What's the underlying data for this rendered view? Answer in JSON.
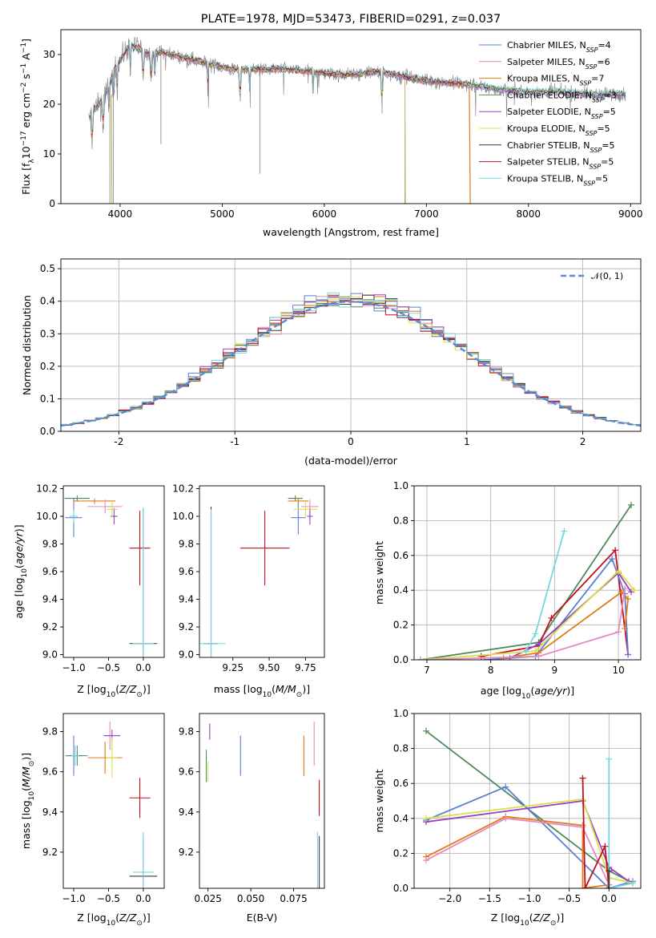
{
  "chart_data": [
    {
      "id": "spectrum",
      "type": "line",
      "title": "PLATE=1978, MJD=53473, FIBERID=0291, z=0.037",
      "xlabel": "wavelength [Angstrom, rest frame]",
      "ylabel": "Flux [f_λ10^{-17} erg cm^{-2} s^{-1} A^{-1}]",
      "xlim": [
        3420,
        9100
      ],
      "ylim": [
        0,
        35
      ],
      "xticks": [
        4000,
        5000,
        6000,
        7000,
        8000,
        9000
      ],
      "yticks": [
        0,
        10,
        20,
        30
      ],
      "grid": false,
      "legend_position": "top-right",
      "continuum": [
        [
          3690,
          17
        ],
        [
          3750,
          19
        ],
        [
          3830,
          21
        ],
        [
          3900,
          24
        ],
        [
          3950,
          27
        ],
        [
          4000,
          29
        ],
        [
          4100,
          32
        ],
        [
          4200,
          31
        ],
        [
          4300,
          30
        ],
        [
          4400,
          30.5
        ],
        [
          4500,
          30
        ],
        [
          4700,
          29
        ],
        [
          4900,
          28
        ],
        [
          5100,
          27
        ],
        [
          5300,
          27
        ],
        [
          5600,
          27
        ],
        [
          5900,
          26.5
        ],
        [
          6100,
          26
        ],
        [
          6300,
          26
        ],
        [
          6500,
          26.5
        ],
        [
          6700,
          26
        ],
        [
          6900,
          25
        ],
        [
          7100,
          24.5
        ],
        [
          7400,
          24
        ],
        [
          7700,
          23
        ],
        [
          8000,
          22.5
        ],
        [
          8300,
          22.5
        ],
        [
          8600,
          22
        ],
        [
          8900,
          22
        ]
      ],
      "series": [
        {
          "name": "Chabrier MILES, N_SSP=4",
          "color": "#5b7fd6"
        },
        {
          "name": "Salpeter MILES, N_SSP=6",
          "color": "#e58ac0"
        },
        {
          "name": "Kroupa MILES, N_SSP=7",
          "color": "#e07b1a"
        },
        {
          "name": "Chabrier ELODIE, N_SSP=3",
          "color": "#4f8a5a"
        },
        {
          "name": "Salpeter ELODIE, N_SSP=5",
          "color": "#9a3fbf"
        },
        {
          "name": "Kroupa ELODIE, N_SSP=5",
          "color": "#d8e04a"
        },
        {
          "name": "Chabrier STELIB, N_SSP=5",
          "color": "#3a3a3a"
        },
        {
          "name": "Salpeter STELIB, N_SSP=5",
          "color": "#c0111f"
        },
        {
          "name": "Kroupa STELIB, N_SSP=5",
          "color": "#74d6e0"
        }
      ]
    },
    {
      "id": "residuals",
      "type": "line",
      "xlabel": "(data-model)/error",
      "ylabel": "Normed distribution",
      "xlim": [
        -2.5,
        2.5
      ],
      "ylim": [
        0,
        0.53
      ],
      "xticks": [
        -2,
        -1,
        0,
        1,
        2
      ],
      "yticks": [
        0.0,
        0.1,
        0.2,
        0.3,
        0.4,
        0.5
      ],
      "grid": true,
      "legend_position": "top-right",
      "legend": "𝒩(0, 1)",
      "reference_curve": {
        "name": "𝒩(0, 1)",
        "color": "#5b8bd6",
        "mean": 0,
        "sigma": 1
      },
      "bin_width": 0.1
    },
    {
      "id": "age_vs_Z",
      "type": "scatter",
      "xlabel": "Z [log10(Z/Z⊙)]",
      "ylabel": "age [log10(age/yr)]",
      "xlim": [
        -1.15,
        0.3
      ],
      "ylim": [
        8.98,
        10.22
      ],
      "xticks": [
        -1.0,
        -0.5,
        0.0
      ],
      "yticks": [
        9.0,
        9.2,
        9.4,
        9.6,
        9.8,
        10.0,
        10.2
      ],
      "points": [
        {
          "color": "#5b7fd6",
          "x": -1.0,
          "y": 9.99,
          "xerr": 0.12,
          "yerr": 0.14
        },
        {
          "color": "#4f8a5a",
          "x": -0.95,
          "y": 10.13,
          "xerr": 0.18,
          "yerr": 0.02
        },
        {
          "color": "#74d6e0",
          "x": -1.0,
          "y": 10.0,
          "xerr": 0.06,
          "yerr": 0.05
        },
        {
          "color": "#e07b1a",
          "x": -0.7,
          "y": 10.11,
          "xerr": 0.3,
          "yerr": 0.02
        },
        {
          "color": "#e58ac0",
          "x": -0.55,
          "y": 10.07,
          "xerr": 0.25,
          "yerr": 0.05
        },
        {
          "color": "#9a3fbf",
          "x": -0.42,
          "y": 10.0,
          "xerr": 0.05,
          "yerr": 0.06
        },
        {
          "color": "#d8e04a",
          "x": -0.45,
          "y": 10.05,
          "xerr": 0.08,
          "yerr": 0.06
        },
        {
          "color": "#c0111f",
          "x": -0.05,
          "y": 9.77,
          "xerr": 0.15,
          "yerr": 0.27
        },
        {
          "color": "#3a3a3a",
          "x": 0.0,
          "y": 9.08,
          "xerr": 0.2,
          "yerr": 0.98
        },
        {
          "color": "#74d6e0",
          "x": 0.0,
          "y": 9.08,
          "xerr": 0.15,
          "yerr": 0.98
        }
      ]
    },
    {
      "id": "age_vs_mass",
      "type": "scatter",
      "xlabel": "mass [log10(M/M⊙)]",
      "ylabel": "",
      "xlim": [
        9.02,
        9.88
      ],
      "ylim": [
        8.98,
        10.22
      ],
      "xticks": [
        9.25,
        9.5,
        9.75
      ],
      "yticks": [
        9.0,
        9.2,
        9.4,
        9.6,
        9.8,
        10.0,
        10.2
      ],
      "points": [
        {
          "color": "#5b7fd6",
          "x": 9.7,
          "y": 9.99,
          "xerr": 0.05,
          "yerr": 0.12
        },
        {
          "color": "#4f8a5a",
          "x": 9.68,
          "y": 10.13,
          "xerr": 0.05,
          "yerr": 0.02
        },
        {
          "color": "#e07b1a",
          "x": 9.7,
          "y": 10.11,
          "xerr": 0.07,
          "yerr": 0.02
        },
        {
          "color": "#e58ac0",
          "x": 9.78,
          "y": 10.07,
          "xerr": 0.06,
          "yerr": 0.05
        },
        {
          "color": "#9a3fbf",
          "x": 9.78,
          "y": 10.0,
          "xerr": 0.02,
          "yerr": 0.06
        },
        {
          "color": "#d8e04a",
          "x": 9.75,
          "y": 10.05,
          "xerr": 0.08,
          "yerr": 0.06
        },
        {
          "color": "#c0111f",
          "x": 9.47,
          "y": 9.77,
          "xerr": 0.17,
          "yerr": 0.27
        },
        {
          "color": "#3a3a3a",
          "x": 9.1,
          "y": 9.08,
          "xerr": 0.05,
          "yerr": 0.99
        },
        {
          "color": "#74d6e0",
          "x": 9.1,
          "y": 9.08,
          "xerr": 0.1,
          "yerr": 0.97
        }
      ]
    },
    {
      "id": "weight_vs_age",
      "type": "line",
      "xlabel": "age [log10(age/yr)]",
      "ylabel": "mass weight",
      "xlim": [
        6.8,
        10.35
      ],
      "ylim": [
        0,
        1.0
      ],
      "xticks": [
        7,
        8,
        9,
        10
      ],
      "yticks": [
        0.0,
        0.2,
        0.4,
        0.6,
        0.8,
        1.0
      ],
      "grid": true,
      "series": [
        {
          "color": "#4f8a5a",
          "x": [
            6.9,
            8.75,
            10.2
          ],
          "y": [
            0.0,
            0.1,
            0.89
          ]
        },
        {
          "color": "#c0111f",
          "x": [
            7.85,
            8.75,
            8.95,
            9.95,
            10.15
          ],
          "y": [
            0.02,
            0.08,
            0.24,
            0.63,
            0.03
          ]
        },
        {
          "color": "#5b7fd6",
          "x": [
            7.9,
            8.7,
            9.9,
            10.1,
            10.15
          ],
          "y": [
            0.0,
            0.02,
            0.58,
            0.38,
            0.03
          ]
        },
        {
          "color": "#9a3fbf",
          "x": [
            8.3,
            8.75,
            10.0,
            10.2
          ],
          "y": [
            0.01,
            0.09,
            0.5,
            0.39
          ]
        },
        {
          "color": "#d8e04a",
          "x": [
            6.9,
            8.7,
            10.0,
            10.25
          ],
          "y": [
            0.0,
            0.05,
            0.51,
            0.4
          ]
        },
        {
          "color": "#e07b1a",
          "x": [
            8.2,
            8.75,
            10.05,
            10.15,
            10.1
          ],
          "y": [
            0.01,
            0.04,
            0.39,
            0.35,
            0.18
          ]
        },
        {
          "color": "#e58ac0",
          "x": [
            6.9,
            8.75,
            10.0,
            10.1
          ],
          "y": [
            0.0,
            0.02,
            0.16,
            0.41
          ]
        },
        {
          "color": "#74d6e0",
          "x": [
            8.55,
            8.7,
            9.15
          ],
          "y": [
            0.05,
            0.15,
            0.74
          ]
        }
      ]
    },
    {
      "id": "mass_vs_Z",
      "type": "scatter",
      "xlabel": "Z [log10(Z/Z⊙)]",
      "ylabel": "mass [log10(M/M⊙)]",
      "xlim": [
        -1.15,
        0.3
      ],
      "ylim": [
        9.02,
        9.89
      ],
      "xticks": [
        -1.0,
        -0.5,
        0.0
      ],
      "yticks": [
        9.2,
        9.4,
        9.6,
        9.8
      ],
      "points": [
        {
          "color": "#5b7fd6",
          "x": -1.0,
          "y": 9.68,
          "xerr": 0.12,
          "yerr": 0.1
        },
        {
          "color": "#4f8a5a",
          "x": -0.95,
          "y": 9.68,
          "xerr": 0.15,
          "yerr": 0.05
        },
        {
          "color": "#74d6e0",
          "x": -0.98,
          "y": 9.68,
          "xerr": 0.05,
          "yerr": 0.05
        },
        {
          "color": "#e07b1a",
          "x": -0.55,
          "y": 9.67,
          "xerr": 0.25,
          "yerr": 0.08
        },
        {
          "color": "#e58ac0",
          "x": -0.48,
          "y": 9.78,
          "xerr": 0.05,
          "yerr": 0.07
        },
        {
          "color": "#9a3fbf",
          "x": -0.45,
          "y": 9.78,
          "xerr": 0.12,
          "yerr": 0.03
        },
        {
          "color": "#d8e04a",
          "x": -0.45,
          "y": 9.67,
          "xerr": 0.08,
          "yerr": 0.1
        },
        {
          "color": "#c0111f",
          "x": -0.05,
          "y": 9.47,
          "xerr": 0.15,
          "yerr": 0.1
        },
        {
          "color": "#3a3a3a",
          "x": 0.0,
          "y": 9.08,
          "xerr": 0.2,
          "yerr": 0.2
        },
        {
          "color": "#74d6e0",
          "x": 0.0,
          "y": 9.1,
          "xerr": 0.15,
          "yerr": 0.2
        }
      ]
    },
    {
      "id": "mass_vs_ebv",
      "type": "scatter",
      "xlabel": "E(B-V)",
      "ylabel": "",
      "xlim": [
        0.02,
        0.093
      ],
      "ylim": [
        9.02,
        9.89
      ],
      "xticks": [
        0.025,
        0.05,
        0.075
      ],
      "yticks": [
        9.2,
        9.4,
        9.6,
        9.8
      ],
      "points": [
        {
          "color": "#4f8a5a",
          "x": 0.024,
          "y": 9.63,
          "xerr": 0,
          "yerr": 0.08
        },
        {
          "color": "#d8e04a",
          "x": 0.025,
          "y": 9.6,
          "xerr": 0,
          "yerr": 0.05
        },
        {
          "color": "#9a3fbf",
          "x": 0.026,
          "y": 9.8,
          "xerr": 0,
          "yerr": 0.04
        },
        {
          "color": "#5b7fd6",
          "x": 0.044,
          "y": 9.68,
          "xerr": 0,
          "yerr": 0.1
        },
        {
          "color": "#e07b1a",
          "x": 0.081,
          "y": 9.68,
          "xerr": 0,
          "yerr": 0.1
        },
        {
          "color": "#e58ac0",
          "x": 0.087,
          "y": 9.74,
          "xerr": 0,
          "yerr": 0.11
        },
        {
          "color": "#c0111f",
          "x": 0.09,
          "y": 9.47,
          "xerr": 0,
          "yerr": 0.09
        },
        {
          "color": "#3a3a3a",
          "x": 0.09,
          "y": 9.08,
          "xerr": 0,
          "yerr": 0.2
        },
        {
          "color": "#74d6e0",
          "x": 0.089,
          "y": 9.1,
          "xerr": 0,
          "yerr": 0.2
        }
      ]
    },
    {
      "id": "weight_vs_Z",
      "type": "line",
      "xlabel": "Z [log10(Z/Z⊙)]",
      "ylabel": "mass weight",
      "xlim": [
        -2.45,
        0.4
      ],
      "ylim": [
        0,
        1.0
      ],
      "xticks": [
        -2.0,
        -1.5,
        -1.0,
        -0.5,
        0.0
      ],
      "yticks": [
        0.0,
        0.2,
        0.4,
        0.6,
        0.8,
        1.0
      ],
      "grid": true,
      "series": [
        {
          "color": "#4f8a5a",
          "x": [
            -2.3,
            0.0,
            0.3
          ],
          "y": [
            0.9,
            0.1,
            0.03
          ]
        },
        {
          "color": "#5b7fd6",
          "x": [
            -2.3,
            -1.3,
            0.0,
            0.3
          ],
          "y": [
            0.39,
            0.58,
            0.0,
            0.04
          ]
        },
        {
          "color": "#9a3fbf",
          "x": [
            -2.3,
            -0.33,
            0.0,
            0.25
          ],
          "y": [
            0.38,
            0.5,
            0.12,
            0.04
          ]
        },
        {
          "color": "#d8e04a",
          "x": [
            -2.3,
            -0.33,
            0.0,
            0.3
          ],
          "y": [
            0.4,
            0.51,
            0.06,
            0.03
          ]
        },
        {
          "color": "#e07b1a",
          "x": [
            -2.3,
            -1.3,
            -0.33,
            -0.33,
            0.0
          ],
          "y": [
            0.18,
            0.41,
            0.36,
            0.0,
            0.02
          ]
        },
        {
          "color": "#e58ac0",
          "x": [
            -2.3,
            -1.3,
            -0.33,
            0.0
          ],
          "y": [
            0.16,
            0.4,
            0.35,
            0.02
          ]
        },
        {
          "color": "#c0111f",
          "x": [
            -0.33,
            -0.3,
            -0.05,
            0.0
          ],
          "y": [
            0.63,
            0.0,
            0.24,
            0.0
          ]
        },
        {
          "color": "#74d6e0",
          "x": [
            0.0,
            0.0,
            0.3
          ],
          "y": [
            0.74,
            0.0,
            0.03
          ]
        },
        {
          "color": "#3a3a3a",
          "x": [
            0.0,
            0.0
          ],
          "y": [
            0.1,
            0.0
          ]
        }
      ]
    }
  ]
}
